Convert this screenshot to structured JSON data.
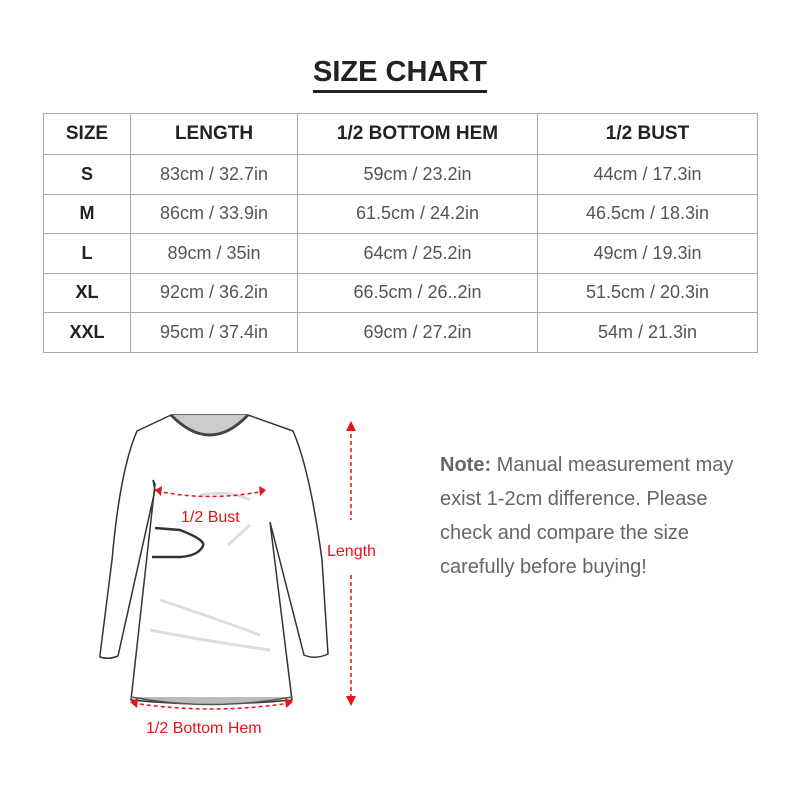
{
  "title": "SIZE CHART",
  "table": {
    "headers": [
      "SIZE",
      "LENGTH",
      "1/2 BOTTOM HEM",
      "1/2 BUST"
    ],
    "rows": [
      [
        "S",
        "83cm / 32.7in",
        "59cm / 23.2in",
        "44cm / 17.3in"
      ],
      [
        "M",
        "86cm / 33.9in",
        "61.5cm / 24.2in",
        "46.5cm / 18.3in"
      ],
      [
        "L",
        "89cm / 35in",
        "64cm / 25.2in",
        "49cm / 19.3in"
      ],
      [
        "XL",
        "92cm / 36.2in",
        "66.5cm / 26..2in",
        "51.5cm / 20.3in"
      ],
      [
        "XXL",
        "95cm / 37.4in",
        "69cm / 27.2in",
        "54m / 21.3in"
      ]
    ]
  },
  "diagram": {
    "bust_label": "1/2 Bust",
    "length_label": "Length",
    "hem_label": "1/2 Bottom Hem",
    "accent_color": "#e8131a"
  },
  "note": {
    "label": "Note:",
    "text": " Manual measurement may exist 1-2cm difference. Please check and compare the size carefully before buying!"
  }
}
